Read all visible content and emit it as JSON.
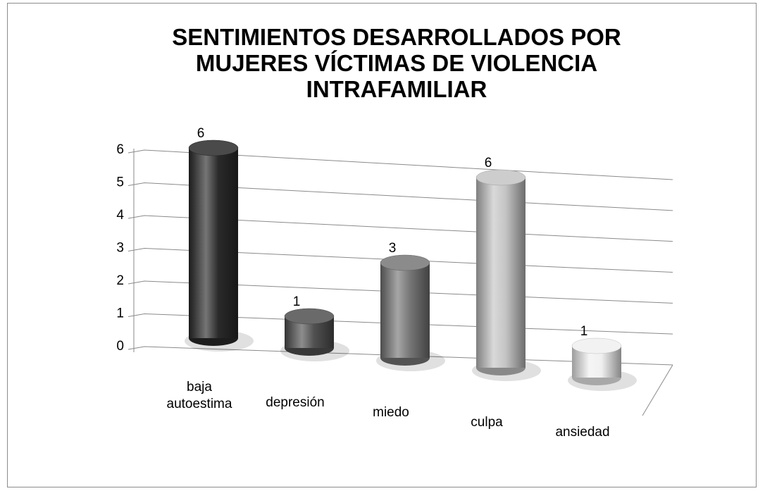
{
  "chart_data": {
    "type": "bar3d",
    "title": "SENTIMIENTOS DESARROLLADOS POR MUJERES VÍCTIMAS DE VIOLENCIA INTRAFAMILIAR",
    "categories": [
      "baja autoestima",
      "depresión",
      "miedo",
      "culpa",
      "ansiedad"
    ],
    "values": [
      6,
      1,
      3,
      6,
      1
    ],
    "colors": [
      "#2a2a2a",
      "#505050",
      "#767676",
      "#c4c4c4",
      "#f0f0f0"
    ],
    "ylim": [
      0,
      6
    ],
    "yticks": [
      0,
      1,
      2,
      3,
      4,
      5,
      6
    ],
    "grid": true
  }
}
